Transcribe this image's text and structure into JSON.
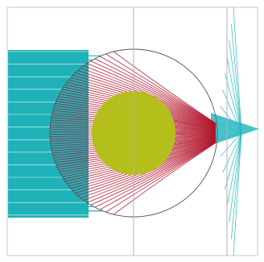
{
  "figure": {
    "colors": {
      "background": "#ffffff",
      "frame": "#cfd1d4",
      "divider": "#b0b2b5",
      "incoming_rays": "#1fb2b8",
      "refracted_rays": "#b3142a",
      "outgoing_rays": "#28b8c2",
      "outer_sphere_outline": "#555555",
      "inner_core": "#b5bf1c"
    },
    "elements": [
      "incoming-ray-bundle",
      "outer-sphere",
      "refracted-ray-fan",
      "inner-core",
      "focus-cone",
      "outgoing-ray-fan"
    ]
  }
}
